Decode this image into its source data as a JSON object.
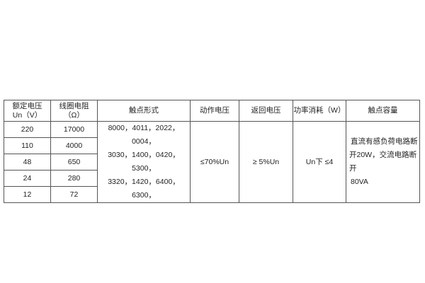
{
  "table": {
    "headers": [
      "额定电压\nUn（V）",
      "线圈电阻\n（Ω）",
      "触点形式",
      "动作电压",
      "返回电压",
      "功率消耗（W）",
      "触点容量"
    ],
    "header_lines": {
      "voltage_1": "额定电压",
      "voltage_2": "Un（V）",
      "resistance_1": "线圈电阻",
      "resistance_2": "（Ω）"
    },
    "rows": [
      {
        "voltage": "220",
        "resistance": "17000"
      },
      {
        "voltage": "110",
        "resistance": "4000"
      },
      {
        "voltage": "48",
        "resistance": "650"
      },
      {
        "voltage": "24",
        "resistance": "280"
      },
      {
        "voltage": "12",
        "resistance": "72"
      }
    ],
    "contact_forms": [
      "8000，4011，2022，0004，",
      "3030，1400，0420，5300，",
      "3320，1420，6400，6300，"
    ],
    "operate_voltage": "≤70%Un",
    "release_voltage": "≥ 5%Un",
    "power": "Un下 ≤4",
    "contact_capacity": [
      "直流有感负荷电路断",
      "开20W，交流电路断开",
      "80VA"
    ]
  }
}
